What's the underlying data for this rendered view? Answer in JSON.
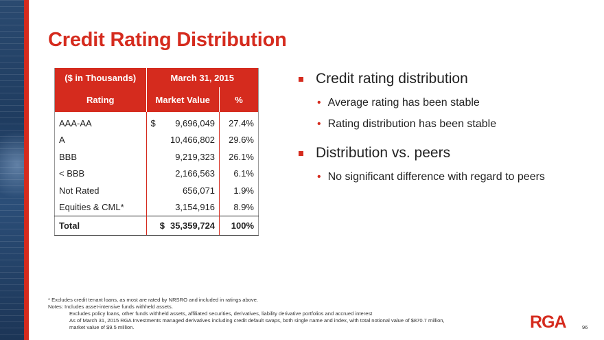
{
  "title": "Credit Rating Distribution",
  "table": {
    "unit_header": "($ in Thousands)",
    "date_header": "March 31, 2015",
    "col_rating": "Rating",
    "col_market_value": "Market Value",
    "col_pct": "%",
    "rows": [
      {
        "rating": "AAA-AA",
        "currency": "$",
        "value": "9,696,049",
        "pct": "27.4%"
      },
      {
        "rating": "A",
        "currency": "",
        "value": "10,466,802",
        "pct": "29.6%"
      },
      {
        "rating": "BBB",
        "currency": "",
        "value": "9,219,323",
        "pct": "26.1%"
      },
      {
        "rating": "< BBB",
        "currency": "",
        "value": "2,166,563",
        "pct": "6.1%"
      },
      {
        "rating": "Not Rated",
        "currency": "",
        "value": "656,071",
        "pct": "1.9%"
      },
      {
        "rating": "Equities & CML*",
        "currency": "",
        "value": "3,154,916",
        "pct": "8.9%"
      }
    ],
    "total": {
      "label": "Total",
      "currency": "$",
      "value": "35,359,724",
      "pct": "100%"
    }
  },
  "bullets": [
    {
      "text": "Credit rating distribution",
      "subs": [
        "Average rating has been stable",
        "Rating distribution has been stable"
      ]
    },
    {
      "text": "Distribution vs. peers",
      "subs": [
        "No significant difference with regard to peers"
      ]
    }
  ],
  "notes": {
    "footnote": "* Excludes credit tenant loans, as most are rated by NRSRO and included in ratings above.",
    "notes_line": "Notes:  Includes asset-intensive funds withheld assets.",
    "line2": "Excludes policy loans, other funds withheld assets, affiliated securities, derivatives, liability derivative portfolios and accrued interest",
    "line3": "As of March 31, 2015 RGA Investments managed derivatives including credit default swaps, both single name and index, with total notional value of $870.7 million,",
    "line4": "market value of $9.5 million."
  },
  "logo_text": "RGA",
  "page_number": "96",
  "colors": {
    "accent": "#d52b1e",
    "sidebar": "#1f3c60"
  }
}
